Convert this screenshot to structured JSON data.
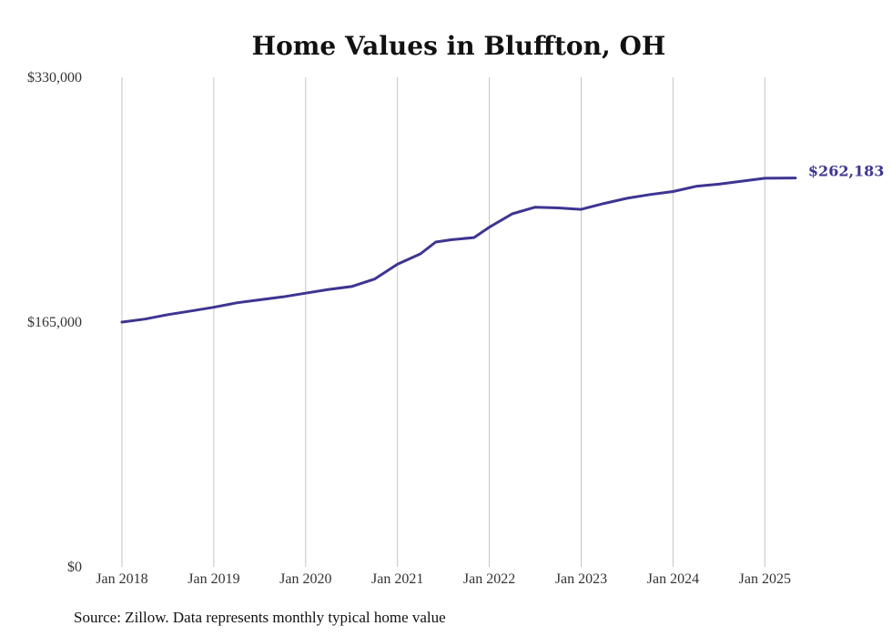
{
  "chart_data": {
    "type": "line",
    "title": "Home Values in Bluffton, OH",
    "xlabel": "",
    "ylabel": "",
    "ylim": [
      0,
      330000
    ],
    "y_ticks": [
      {
        "value": 0,
        "label": "$0"
      },
      {
        "value": 165000,
        "label": "$165,000"
      },
      {
        "value": 330000,
        "label": "$330,000"
      }
    ],
    "x_ticks": [
      {
        "value": "2018-01",
        "label": "Jan 2018"
      },
      {
        "value": "2019-01",
        "label": "Jan 2019"
      },
      {
        "value": "2020-01",
        "label": "Jan 2020"
      },
      {
        "value": "2021-01",
        "label": "Jan 2021"
      },
      {
        "value": "2022-01",
        "label": "Jan 2022"
      },
      {
        "value": "2023-01",
        "label": "Jan 2023"
      },
      {
        "value": "2024-01",
        "label": "Jan 2024"
      },
      {
        "value": "2025-01",
        "label": "Jan 2025"
      }
    ],
    "xlim": [
      "2018-01",
      "2025-05"
    ],
    "grid": {
      "vertical": true,
      "horizontal": false
    },
    "series": [
      {
        "color": "#3d3591",
        "end_label": "$262,183",
        "x": [
          "2018-01",
          "2018-04",
          "2018-07",
          "2018-10",
          "2019-01",
          "2019-04",
          "2019-07",
          "2019-10",
          "2020-01",
          "2020-04",
          "2020-07",
          "2020-10",
          "2021-01",
          "2021-04",
          "2021-06",
          "2021-08",
          "2021-11",
          "2022-01",
          "2022-04",
          "2022-07",
          "2022-10",
          "2023-01",
          "2023-04",
          "2023-07",
          "2023-10",
          "2024-01",
          "2024-04",
          "2024-07",
          "2024-10",
          "2025-01",
          "2025-05"
        ],
        "y": [
          165000,
          167000,
          170000,
          172500,
          175000,
          178000,
          180000,
          182000,
          184500,
          187000,
          189000,
          194000,
          204000,
          211000,
          219000,
          220500,
          222000,
          229000,
          238000,
          242500,
          242000,
          241000,
          245000,
          248500,
          251000,
          253000,
          256500,
          258000,
          260000,
          262000,
          262183
        ]
      }
    ]
  },
  "source_note": "Source: Zillow. Data represents monthly typical home value"
}
